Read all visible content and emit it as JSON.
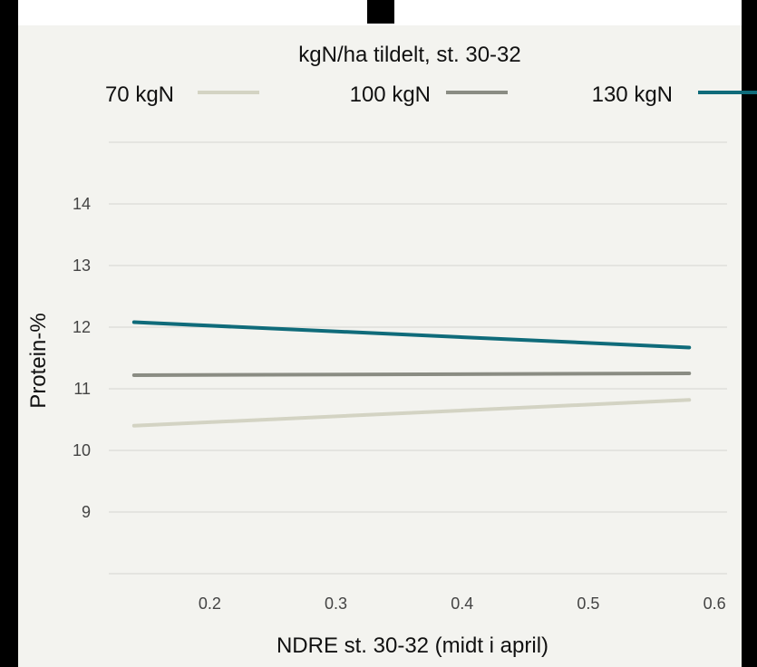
{
  "chart_data": {
    "type": "line",
    "title": "",
    "xlabel": "NDRE st. 30-32 (midt i april)",
    "ylabel": "Protein-%",
    "xlim": [
      0.12,
      0.61
    ],
    "ylim": [
      8,
      15
    ],
    "x_ticks": [
      0.2,
      0.3,
      0.4,
      0.5,
      0.6
    ],
    "y_ticks": [
      9,
      10,
      11,
      12,
      13,
      14
    ],
    "grid": "horizontal",
    "legend": {
      "title": "kgN/ha tildelt, st. 30-32",
      "placement": "top"
    },
    "series": [
      {
        "name": "70 kgN",
        "color": "#d3d3c3",
        "x": [
          0.14,
          0.58
        ],
        "y": [
          10.4,
          10.82
        ]
      },
      {
        "name": "100 kgN",
        "color": "#8a8c83",
        "x": [
          0.14,
          0.58
        ],
        "y": [
          11.22,
          11.25
        ]
      },
      {
        "name": "130 kgN",
        "color": "#0f6b7a",
        "x": [
          0.14,
          0.58
        ],
        "y": [
          12.08,
          11.67
        ]
      }
    ]
  }
}
